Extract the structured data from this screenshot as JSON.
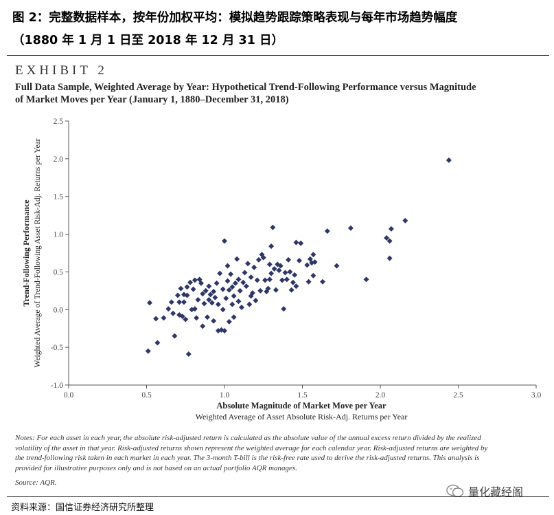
{
  "header": {
    "title_line1": "图 2：完整数据样本，按年份加权平均：模拟趋势跟踪策略表现与每年市场趋势幅度",
    "title_line2": "（1880 年 1 月 1 日至 2018 年 12 月 31 日）"
  },
  "exhibit": {
    "label": "EXHIBIT 2",
    "subtitle_line1": "Full Data Sample, Weighted Average by Year: Hypothetical Trend-Following Performance versus Magnitude",
    "subtitle_line2": "of Market Moves per Year (January 1, 1880–December 31, 2018)"
  },
  "chart_data": {
    "type": "scatter",
    "marker": "diamond",
    "marker_color": "#2f3768",
    "xlabel": "Absolute Magnitude of Market Move per Year",
    "xlabel_sub": "Weighted Average of Asset Absolute Risk-Adj. Returns per Year",
    "ylabel": "Trend-Following Performance",
    "ylabel_sub": "Weighted Average of Trend-Following Asset Risk-Adj. Returns per Year",
    "xlim": [
      0.0,
      3.0
    ],
    "ylim": [
      -1.0,
      2.5
    ],
    "xticks": [
      "0.0",
      "0.5",
      "1.0",
      "1.5",
      "2.0",
      "2.5",
      "3.0"
    ],
    "yticks": [
      "2.5",
      "2.0",
      "1.5",
      "1.0",
      "0.5",
      "0.0",
      "-0.5",
      "-1.0"
    ],
    "grid": false,
    "points": [
      [
        0.52,
        0.09
      ],
      [
        0.51,
        -0.55
      ],
      [
        0.57,
        -0.44
      ],
      [
        0.56,
        -0.12
      ],
      [
        0.61,
        -0.11
      ],
      [
        0.64,
        0.01
      ],
      [
        0.66,
        0.1
      ],
      [
        0.67,
        -0.05
      ],
      [
        0.68,
        -0.35
      ],
      [
        0.7,
        0.19
      ],
      [
        0.71,
        0.1
      ],
      [
        0.71,
        -0.07
      ],
      [
        0.72,
        0.28
      ],
      [
        0.73,
        -0.09
      ],
      [
        0.74,
        0.1
      ],
      [
        0.74,
        0.2
      ],
      [
        0.75,
        -0.13
      ],
      [
        0.76,
        0.3
      ],
      [
        0.76,
        0.19
      ],
      [
        0.77,
        -0.59
      ],
      [
        0.78,
        0.36
      ],
      [
        0.79,
        0.0
      ],
      [
        0.8,
        0.27
      ],
      [
        0.81,
        0.01
      ],
      [
        0.81,
        0.39
      ],
      [
        0.82,
        -0.11
      ],
      [
        0.83,
        0.13
      ],
      [
        0.84,
        0.4
      ],
      [
        0.85,
        0.35
      ],
      [
        0.86,
        0.21
      ],
      [
        0.86,
        -0.22
      ],
      [
        0.87,
        0.08
      ],
      [
        0.88,
        0.25
      ],
      [
        0.89,
        -0.1
      ],
      [
        0.9,
        0.13
      ],
      [
        0.9,
        0.31
      ],
      [
        0.91,
        0.2
      ],
      [
        0.92,
        0.09
      ],
      [
        0.93,
        -0.15
      ],
      [
        0.93,
        0.24
      ],
      [
        0.94,
        0.16
      ],
      [
        0.95,
        0.35
      ],
      [
        0.96,
        0.07
      ],
      [
        0.96,
        -0.28
      ],
      [
        0.97,
        0.48
      ],
      [
        0.98,
        -0.27
      ],
      [
        0.99,
        0.27
      ],
      [
        0.99,
        0.0
      ],
      [
        1.0,
        0.91
      ],
      [
        1.0,
        -0.28
      ],
      [
        1.01,
        0.15
      ],
      [
        1.02,
        0.58
      ],
      [
        1.02,
        0.38
      ],
      [
        1.03,
        0.26
      ],
      [
        1.03,
        -0.16
      ],
      [
        1.04,
        0.47
      ],
      [
        1.05,
        0.3
      ],
      [
        1.05,
        0.07
      ],
      [
        1.06,
        0.18
      ],
      [
        1.06,
        -0.1
      ],
      [
        1.07,
        0.35
      ],
      [
        1.08,
        0.67
      ],
      [
        1.09,
        0.11
      ],
      [
        1.09,
        0.4
      ],
      [
        1.1,
        0.25
      ],
      [
        1.11,
        0.03
      ],
      [
        1.12,
        0.36
      ],
      [
        1.13,
        0.49
      ],
      [
        1.14,
        0.31
      ],
      [
        1.15,
        0.61
      ],
      [
        1.16,
        0.07
      ],
      [
        1.17,
        0.43
      ],
      [
        1.17,
        0.18
      ],
      [
        1.18,
        0.22
      ],
      [
        1.19,
        0.56
      ],
      [
        1.2,
        0.12
      ],
      [
        1.21,
        0.39
      ],
      [
        1.22,
        0.66
      ],
      [
        1.23,
        0.25
      ],
      [
        1.24,
        0.73
      ],
      [
        1.25,
        0.69
      ],
      [
        1.26,
        0.39
      ],
      [
        1.27,
        0.24
      ],
      [
        1.28,
        0.28
      ],
      [
        1.29,
        0.6
      ],
      [
        1.29,
        0.4
      ],
      [
        1.3,
        0.84
      ],
      [
        1.3,
        0.48
      ],
      [
        1.31,
        1.09
      ],
      [
        1.32,
        0.54
      ],
      [
        1.33,
        0.26
      ],
      [
        1.34,
        0.6
      ],
      [
        1.35,
        0.52
      ],
      [
        1.36,
        0.58
      ],
      [
        1.37,
        0.39
      ],
      [
        1.38,
        0.01
      ],
      [
        1.39,
        0.49
      ],
      [
        1.4,
        0.4
      ],
      [
        1.41,
        0.66
      ],
      [
        1.42,
        0.5
      ],
      [
        1.43,
        0.26
      ],
      [
        1.44,
        0.36
      ],
      [
        1.45,
        0.46
      ],
      [
        1.46,
        0.89
      ],
      [
        1.46,
        0.31
      ],
      [
        1.48,
        0.65
      ],
      [
        1.49,
        0.88
      ],
      [
        1.53,
        0.59
      ],
      [
        1.54,
        0.37
      ],
      [
        1.55,
        0.67
      ],
      [
        1.56,
        0.62
      ],
      [
        1.57,
        0.73
      ],
      [
        1.57,
        0.45
      ],
      [
        1.58,
        0.63
      ],
      [
        1.63,
        0.37
      ],
      [
        1.66,
        1.04
      ],
      [
        1.72,
        0.58
      ],
      [
        1.81,
        1.08
      ],
      [
        1.91,
        0.4
      ],
      [
        2.04,
        0.95
      ],
      [
        2.06,
        0.91
      ],
      [
        2.06,
        0.68
      ],
      [
        2.07,
        1.07
      ],
      [
        2.16,
        1.18
      ],
      [
        2.44,
        1.98
      ]
    ]
  },
  "notes": {
    "line1": "Notes: For each asset in each year, the absolute risk-adjusted return is calculated as the absolute value of the annual excess return divided by the realized",
    "line2": "volatility of the asset in that year. Risk-adjusted returns shown represent the weighted average for each calendar year. Risk-adjusted returns are weighted by",
    "line3": "the trend-following risk taken in each market in each year. The 3-month T-bill is the risk-free rate used to derive the risk-adjusted returns. This analysis is",
    "line4": "provided for illustrative purposes only and is not based on an actual portfolio AQR manages.",
    "source": "Source: AQR."
  },
  "footer": {
    "source_label": "资料来源：国信证券经济研究所整理",
    "watermark": "量化藏经阁",
    "watermark_icon": "wechat-icon"
  }
}
